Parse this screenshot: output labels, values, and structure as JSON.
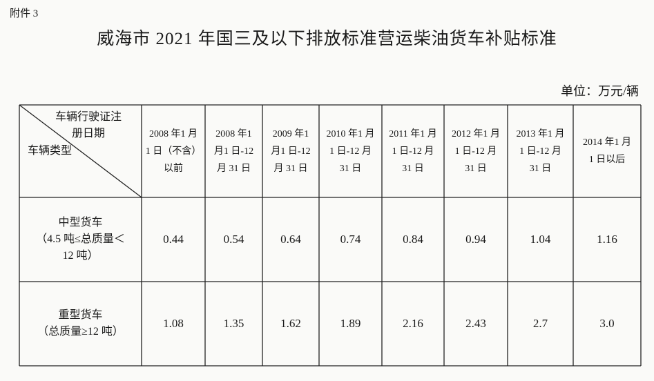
{
  "attachment": "附件 3",
  "title": "威海市 2021 年国三及以下排放标准营运柴油货车补贴标准",
  "unit": "单位：万元/辆",
  "table": {
    "corner": {
      "top": [
        "车辆行驶证注",
        "册日期"
      ],
      "bottom": "车辆类型"
    },
    "columns": [
      [
        "2008 年1 月",
        "1 日（不含）",
        "以前"
      ],
      [
        "2008 年1",
        "月1 日-12",
        "月 31 日"
      ],
      [
        "2009 年1",
        "月1 日-12",
        "月 31 日"
      ],
      [
        "2010 年1 月",
        "1 日-12 月",
        "31 日"
      ],
      [
        "2011 年1 月",
        "1 日-12 月",
        "31 日"
      ],
      [
        "2012 年1 月",
        "1 日-12 月",
        "31 日"
      ],
      [
        "2013 年1 月",
        "1 日-12 月",
        "31 日"
      ],
      [
        "2014 年1 月",
        "1 日以后"
      ]
    ],
    "rows": [
      {
        "label": [
          "中型货车",
          "（4.5 吨≤总质量＜",
          "12 吨）"
        ],
        "values": [
          "0.44",
          "0.54",
          "0.64",
          "0.74",
          "0.84",
          "0.94",
          "1.04",
          "1.16"
        ]
      },
      {
        "label": [
          "重型货车",
          "（总质量≥12 吨）"
        ],
        "values": [
          "1.08",
          "1.35",
          "1.62",
          "1.89",
          "2.16",
          "2.43",
          "2.7",
          "3.0"
        ]
      }
    ]
  }
}
